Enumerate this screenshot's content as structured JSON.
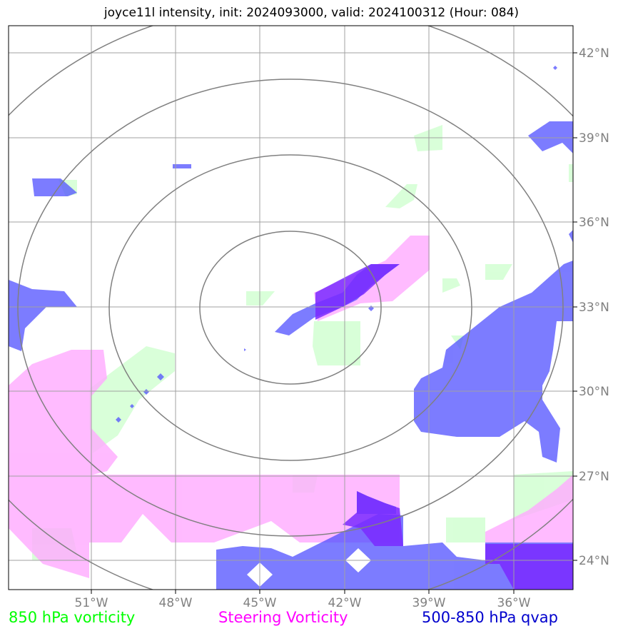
{
  "title": "joyce11l intensity, init: 2024093000, valid: 2024100312 (Hour: 084)",
  "lon_ticks": [
    "51°W",
    "48°W",
    "45°W",
    "42°W",
    "39°W",
    "36°W"
  ],
  "lat_ticks": [
    "42°N",
    "39°N",
    "36°N",
    "33°N",
    "30°N",
    "27°N",
    "24°N"
  ],
  "legend": [
    {
      "label": "850 hPa vorticity",
      "color": "#00ff00"
    },
    {
      "label": "Steering Vorticity",
      "color": "#ff00ff"
    },
    {
      "label": "500-850 hPa qvap",
      "color": "#0000cd"
    }
  ],
  "colors": {
    "vorticity_850": "#ccffcc",
    "steering_vorticity": "#ffaaff",
    "qvap": "#5050ff",
    "overlap": "#7a2aff",
    "grid": "#a0a0a0",
    "range_rings": "#808080"
  }
}
